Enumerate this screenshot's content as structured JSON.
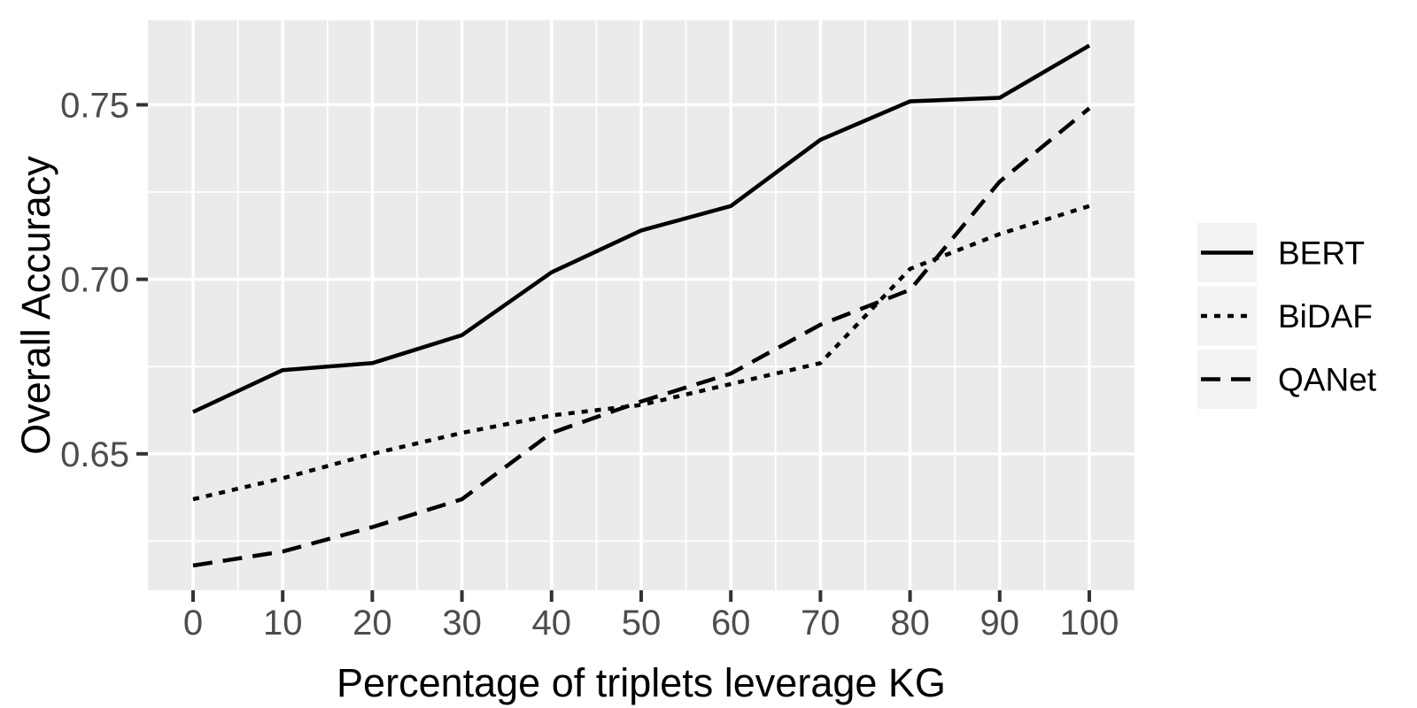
{
  "colors": {
    "background": "#FFFFFF",
    "panel_background": "#EBEBEB",
    "gridline": "#FFFFFF",
    "series_line": "#000000",
    "tick_mark": "#333333",
    "tick_label": "#4D4D4D",
    "axis_title": "#000000",
    "legend_key_background": "#F2F2F2",
    "legend_label": "#000000"
  },
  "chart_data": {
    "type": "line",
    "title": "",
    "xlabel": "Percentage of triplets leverage KG",
    "ylabel": "Overall Accuracy",
    "x": [
      0,
      10,
      20,
      30,
      40,
      50,
      60,
      70,
      80,
      90,
      100
    ],
    "series": [
      {
        "name": "BERT",
        "linetype": "solid",
        "values": [
          0.662,
          0.674,
          0.676,
          0.684,
          0.702,
          0.714,
          0.721,
          0.74,
          0.751,
          0.752,
          0.767
        ]
      },
      {
        "name": "BiDAF",
        "linetype": "dotted",
        "values": [
          0.637,
          0.643,
          0.65,
          0.656,
          0.661,
          0.664,
          0.67,
          0.676,
          0.703,
          0.713,
          0.721
        ]
      },
      {
        "name": "QANet",
        "linetype": "dashed",
        "values": [
          0.618,
          0.622,
          0.629,
          0.637,
          0.656,
          0.665,
          0.673,
          0.687,
          0.697,
          0.728,
          0.749
        ]
      }
    ],
    "x_ticks": [
      0,
      10,
      20,
      30,
      40,
      50,
      60,
      70,
      80,
      90,
      100
    ],
    "x_tick_labels": [
      "0",
      "10",
      "20",
      "30",
      "40",
      "50",
      "60",
      "70",
      "80",
      "90",
      "100"
    ],
    "x_minor_gridlines": [
      5,
      15,
      25,
      35,
      45,
      55,
      65,
      75,
      85,
      95
    ],
    "y_ticks": [
      0.65,
      0.7,
      0.75
    ],
    "y_tick_labels": [
      "0.65",
      "0.70",
      "0.75"
    ],
    "y_minor_gridlines": [
      0.625,
      0.675,
      0.725
    ],
    "xlim": [
      -5.04,
      105.04
    ],
    "ylim": [
      0.6109,
      0.7742
    ],
    "grid": true,
    "legend_position": "right",
    "legend": {
      "items": [
        {
          "label": "BERT",
          "linetype": "solid"
        },
        {
          "label": "BiDAF",
          "linetype": "dotted"
        },
        {
          "label": "QANet",
          "linetype": "dashed"
        }
      ]
    }
  }
}
